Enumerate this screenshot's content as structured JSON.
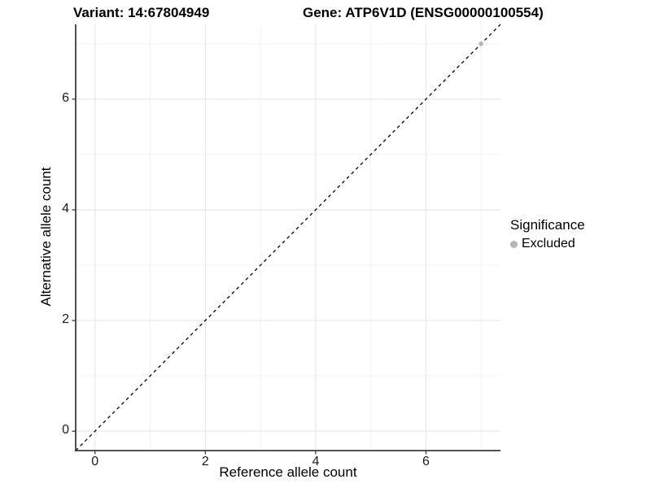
{
  "titles": {
    "variant": "Variant: 14:67804949",
    "gene": "Gene: ATP6V1D (ENSG00000100554)"
  },
  "chart_data": {
    "type": "scatter",
    "title_left": "Variant: 14:67804949",
    "title_right": "Gene: ATP6V1D (ENSG00000100554)",
    "xlabel": "Reference allele count",
    "ylabel": "Alternative allele count",
    "xlim": [
      -0.35,
      7.35
    ],
    "ylim": [
      -0.35,
      7.35
    ],
    "x_major_ticks": [
      0,
      2,
      4,
      6
    ],
    "y_major_ticks": [
      0,
      2,
      4,
      6
    ],
    "x_minor_gridlines": [
      1,
      3,
      5,
      7
    ],
    "y_minor_gridlines": [
      1,
      3,
      5,
      7
    ],
    "grid": "on",
    "legend_position": "right",
    "identity_line": {
      "style": "dashed",
      "from": [
        -0.35,
        -0.35
      ],
      "to": [
        7.35,
        7.35
      ]
    },
    "series": [
      {
        "name": "Excluded",
        "points": [
          {
            "x": 7,
            "y": 7
          }
        ]
      }
    ]
  },
  "legend": {
    "title": "Significance",
    "items": [
      {
        "label": "Excluded",
        "color": "#b5b5b5"
      }
    ]
  },
  "colors": {
    "background": "#ffffff",
    "grid_major": "#e8e8e8",
    "grid_minor": "#f3f3f3",
    "axis_line": "#3c3c3c",
    "identity_line": "#000000",
    "point_excluded": "#b5b5b5",
    "tick_label": "#1c1c1c"
  }
}
